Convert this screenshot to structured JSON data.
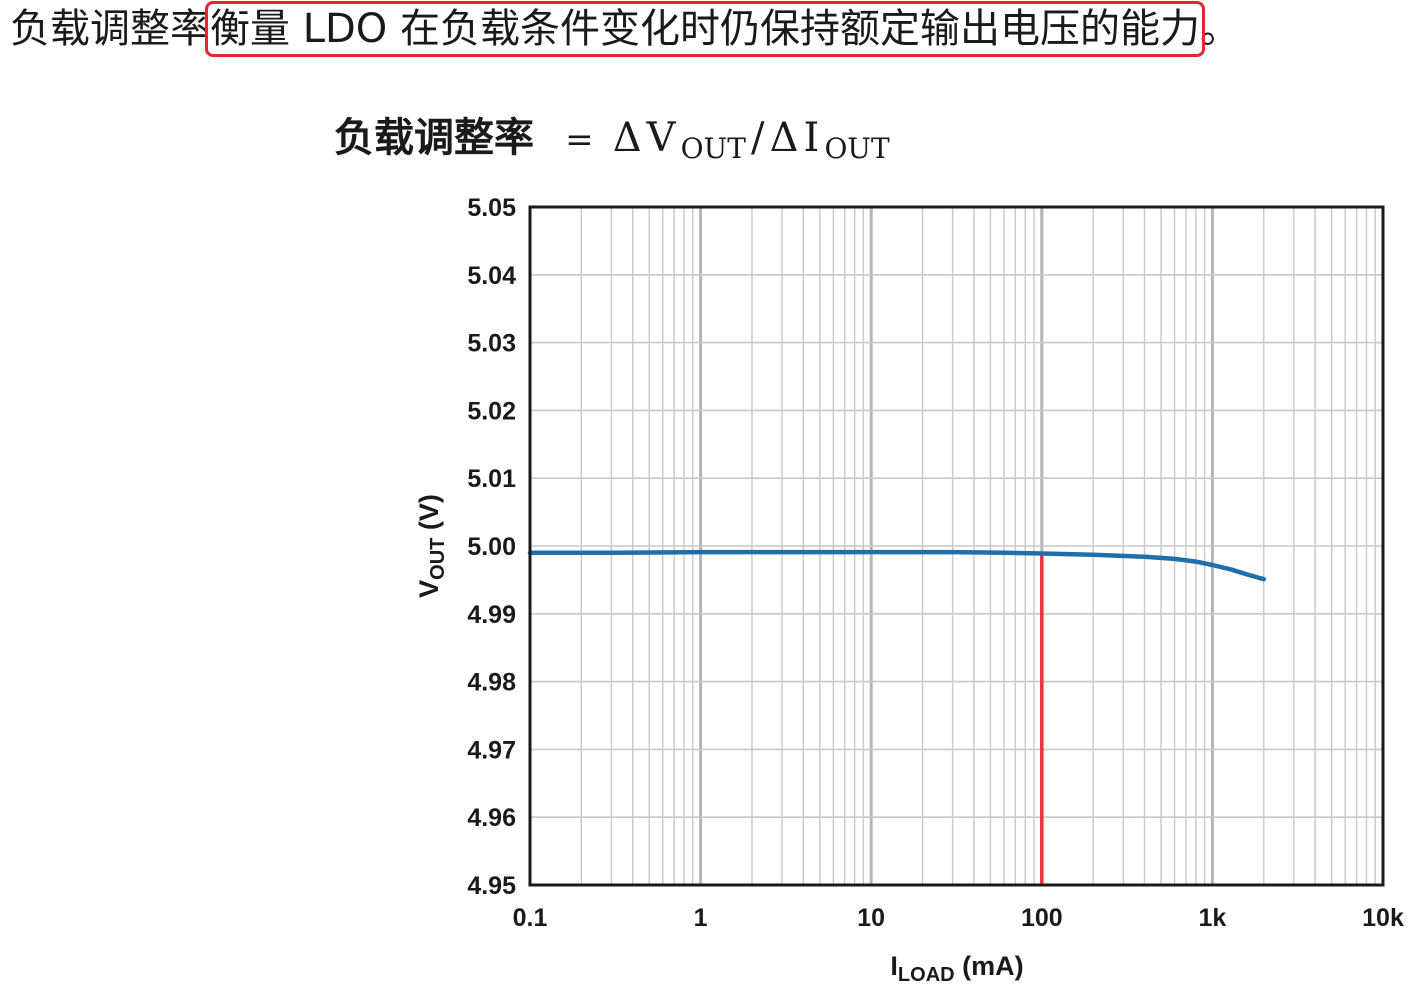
{
  "sentence": {
    "before": "负载调整率",
    "highlighted": "衡量 LDO 在负载条件变化时仍保持额定输出电压的能力",
    "after": "。",
    "highlight_color": "#e0282e"
  },
  "formula": {
    "lhs": "负载调整率",
    "equals": "=",
    "delta": "Δ",
    "v": "V",
    "v_sub": "OUT",
    "slash": "/",
    "i": "I",
    "i_sub": "OUT"
  },
  "chart_data": {
    "type": "line",
    "x_scale": "log",
    "xlim": [
      0.1,
      10000
    ],
    "ylim": [
      4.95,
      5.05
    ],
    "xlabel": {
      "main": "I",
      "sub": "LOAD",
      "unit": " (mA)"
    },
    "ylabel": {
      "main": "V",
      "sub": "OUT",
      "unit": " (V)"
    },
    "x_ticks": [
      {
        "value": 0.1,
        "label": "0.1"
      },
      {
        "value": 1,
        "label": "1"
      },
      {
        "value": 10,
        "label": "10"
      },
      {
        "value": 100,
        "label": "100"
      },
      {
        "value": 1000,
        "label": "1k"
      },
      {
        "value": 10000,
        "label": "10k"
      }
    ],
    "y_ticks": [
      {
        "value": 5.05,
        "label": "5.05"
      },
      {
        "value": 5.04,
        "label": "5.04"
      },
      {
        "value": 5.03,
        "label": "5.03"
      },
      {
        "value": 5.02,
        "label": "5.02"
      },
      {
        "value": 5.01,
        "label": "5.01"
      },
      {
        "value": 5.0,
        "label": "5.00"
      },
      {
        "value": 4.99,
        "label": "4.99"
      },
      {
        "value": 4.98,
        "label": "4.98"
      },
      {
        "value": 4.97,
        "label": "4.97"
      },
      {
        "value": 4.96,
        "label": "4.96"
      },
      {
        "value": 4.95,
        "label": "4.95"
      }
    ],
    "grid": true,
    "series": [
      {
        "color": "#1f6fa8",
        "x": [
          0.1,
          0.3,
          1,
          3,
          10,
          30,
          60,
          100,
          200,
          400,
          600,
          800,
          1000,
          1300,
          1600,
          2000
        ],
        "y": [
          4.999,
          4.999,
          4.9991,
          4.9991,
          4.9991,
          4.9991,
          4.999,
          4.9989,
          4.9987,
          4.9984,
          4.9981,
          4.9977,
          4.9972,
          4.9965,
          4.9958,
          4.9951
        ]
      }
    ],
    "annotation": {
      "type": "vertical_line",
      "x": 100,
      "color": "#e8313a"
    },
    "colors": {
      "grid": "#c8c8c8",
      "frame": "#1a1a1a"
    }
  }
}
